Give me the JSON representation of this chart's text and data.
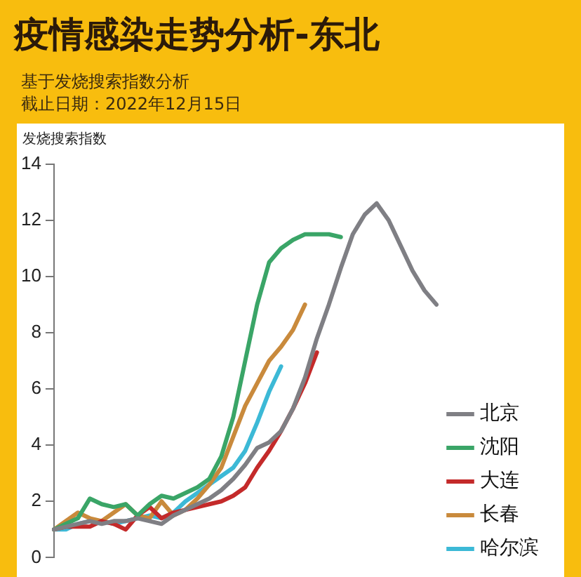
{
  "chart_data": {
    "type": "line",
    "title": "疫情感染走势分析-东北",
    "subtitle": "基于发烧搜索指数分析",
    "annotations": [
      "截止日期：2022年12月15日"
    ],
    "ylabel": "发烧搜索指数",
    "categories": [
      null,
      null,
      null,
      null,
      null,
      null,
      null,
      null,
      null,
      null,
      null,
      null,
      null,
      null,
      null,
      null,
      null,
      null,
      null,
      null,
      null,
      null,
      null,
      null,
      null,
      null,
      null,
      null,
      null,
      null,
      null,
      null,
      null
    ],
    "series": [
      {
        "name": "北京",
        "color": "#7f7f84",
        "values": [
          1.0,
          1.1,
          1.2,
          1.3,
          1.2,
          1.3,
          1.3,
          1.4,
          1.3,
          1.2,
          1.5,
          1.7,
          1.9,
          2.1,
          2.4,
          2.8,
          3.3,
          3.9,
          4.1,
          4.5,
          5.3,
          6.4,
          7.8,
          9.0,
          10.3,
          11.5,
          12.2,
          12.6,
          12.0,
          11.1,
          10.2,
          9.5,
          9.0
        ]
      },
      {
        "name": "沈阳",
        "color": "#3aa567",
        "values": [
          1.0,
          1.2,
          1.4,
          2.1,
          1.9,
          1.8,
          1.9,
          1.5,
          1.9,
          2.2,
          2.1,
          2.3,
          2.5,
          2.8,
          3.6,
          5.0,
          7.0,
          9.0,
          10.5,
          11.0,
          11.3,
          11.5,
          11.5,
          11.5,
          11.4,
          null,
          null,
          null,
          null,
          null,
          null,
          null,
          null
        ]
      },
      {
        "name": "大连",
        "color": "#c42a2a",
        "values": [
          1.0,
          1.1,
          1.1,
          1.1,
          1.3,
          1.2,
          1.0,
          1.5,
          1.8,
          1.4,
          1.6,
          1.7,
          1.8,
          1.9,
          2.0,
          2.2,
          2.5,
          3.2,
          3.8,
          4.5,
          5.3,
          6.2,
          7.3,
          null,
          null,
          null,
          null,
          null,
          null,
          null,
          null,
          null,
          null
        ]
      },
      {
        "name": "长春",
        "color": "#c98a3c",
        "values": [
          1.0,
          1.3,
          1.6,
          1.4,
          1.3,
          1.6,
          1.9,
          1.5,
          1.4,
          2.0,
          1.5,
          1.7,
          2.1,
          2.6,
          3.2,
          4.3,
          5.4,
          6.2,
          7.0,
          7.5,
          8.1,
          9.0,
          null,
          null,
          null,
          null,
          null,
          null,
          null,
          null,
          null,
          null,
          null
        ]
      },
      {
        "name": "哈尔滨",
        "color": "#3cb9d6",
        "values": [
          1.0,
          1.0,
          1.2,
          1.3,
          1.3,
          1.2,
          1.3,
          1.4,
          1.5,
          1.4,
          1.6,
          2.0,
          2.3,
          2.6,
          2.9,
          3.2,
          3.8,
          4.8,
          5.9,
          6.8,
          null,
          null,
          null,
          null,
          null,
          null,
          null,
          null,
          null,
          null,
          null,
          null,
          null
        ]
      }
    ],
    "ylim": [
      0,
      14
    ],
    "yticks": [
      0,
      2,
      4,
      6,
      8,
      10,
      12,
      14
    ],
    "grid": false,
    "legend": "right",
    "tick_labels": "y",
    "marker": "none",
    "line_style": "solid"
  }
}
